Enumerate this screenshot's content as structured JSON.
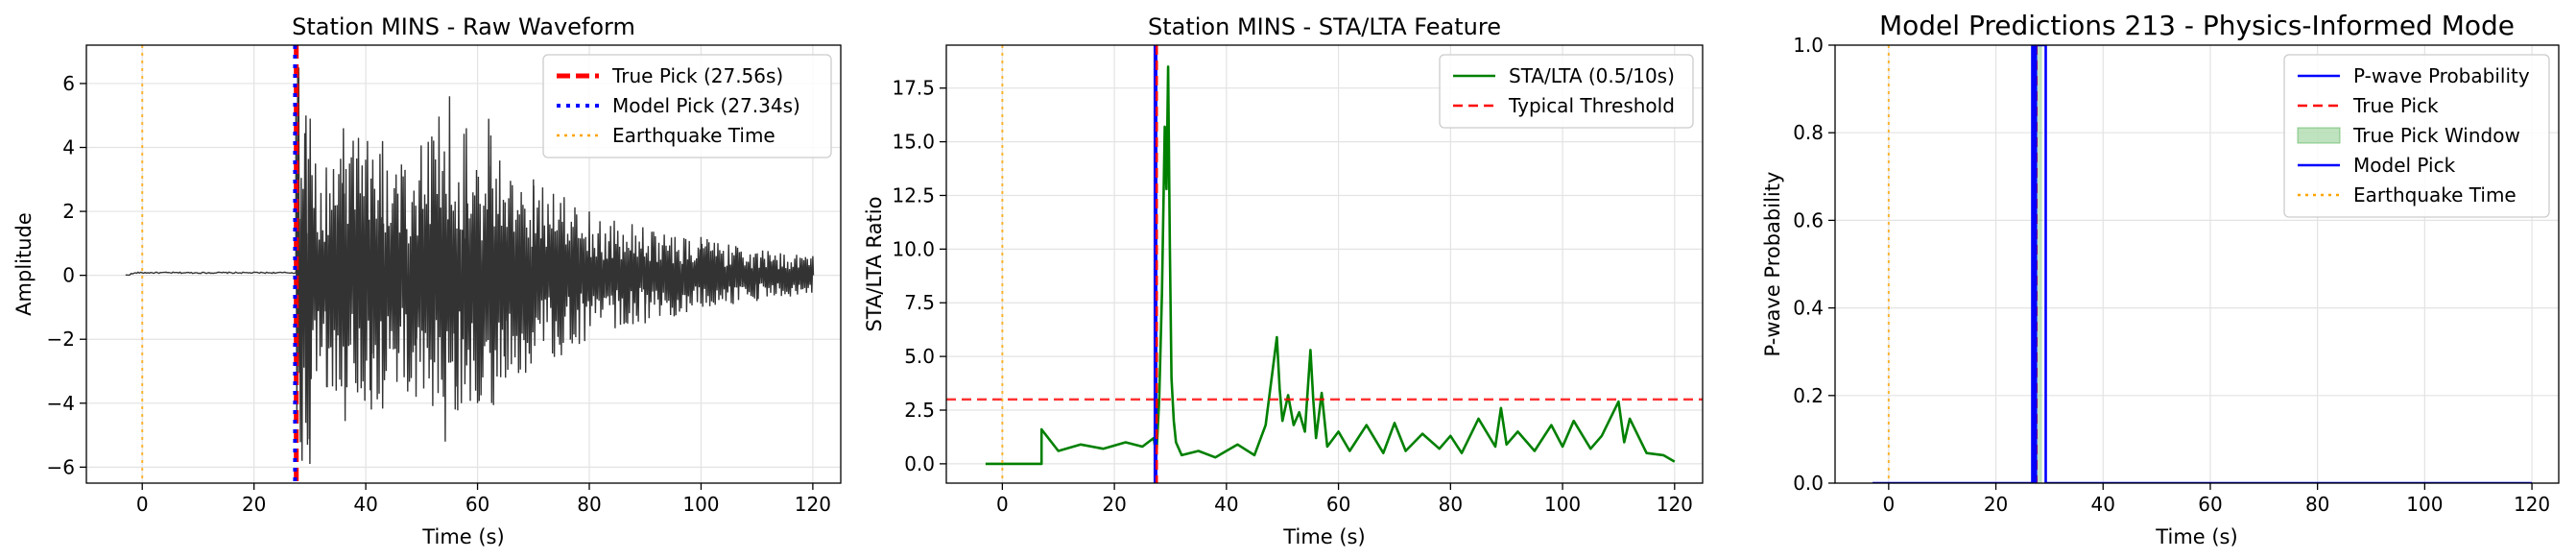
{
  "chart_data": [
    {
      "type": "line",
      "title": "Station MINS - Raw Waveform",
      "xlabel": "Time (s)",
      "ylabel": "Amplitude",
      "xlim": [
        -10,
        125
      ],
      "ylim": [
        -6.5,
        7.2
      ],
      "xticks": [
        0,
        20,
        40,
        60,
        80,
        100,
        120
      ],
      "yticks": [
        -6,
        -4,
        -2,
        0,
        2,
        4,
        6
      ],
      "grid": true,
      "legend_position": "top-right",
      "waveform": {
        "color": "#333333",
        "quiet_start": -3,
        "quiet_end": 27.5,
        "quiet_level": 0.08,
        "end": 120,
        "burst_peaks": [
          [
            28.0,
            6.5
          ],
          [
            28.6,
            -5.8
          ],
          [
            29.3,
            5.0
          ],
          [
            30.0,
            -5.9
          ],
          [
            31.0,
            3.5
          ],
          [
            33.0,
            -3.5
          ],
          [
            36.0,
            4.6
          ],
          [
            41.0,
            -4.2
          ],
          [
            43.0,
            4.2
          ],
          [
            49.0,
            -3.8
          ],
          [
            55.0,
            5.6
          ],
          [
            56.0,
            -4.2
          ],
          [
            58.0,
            4.6
          ],
          [
            60.0,
            -4.0
          ],
          [
            62.0,
            4.9
          ],
          [
            65.0,
            -3.2
          ],
          [
            70.0,
            3.0
          ],
          [
            75.0,
            -2.5
          ],
          [
            80.0,
            2.0
          ],
          [
            90.0,
            -1.5
          ],
          [
            100.0,
            1.2
          ],
          [
            110.0,
            -0.8
          ],
          [
            120.0,
            0.6
          ]
        ]
      },
      "vlines": [
        {
          "name": "True Pick",
          "x": 27.56,
          "color": "#ff0000",
          "style": "dashed-thick"
        },
        {
          "name": "Model Pick",
          "x": 27.34,
          "color": "#0000ff",
          "style": "dotted-thick"
        },
        {
          "name": "Earthquake Time",
          "x": 0,
          "color": "#ffa500",
          "style": "dotted"
        }
      ],
      "legend": [
        {
          "label": "True Pick (27.56s)",
          "color": "#ff0000",
          "style": "dashed-thick"
        },
        {
          "label": "Model Pick (27.34s)",
          "color": "#0000ff",
          "style": "dotted-thick"
        },
        {
          "label": "Earthquake Time",
          "color": "#ffa500",
          "style": "dotted"
        }
      ]
    },
    {
      "type": "line",
      "title": "Station MINS - STA/LTA Feature",
      "xlabel": "Time (s)",
      "ylabel": "STA/LTA Ratio",
      "xlim": [
        -10,
        125
      ],
      "ylim": [
        -0.9,
        19.5
      ],
      "xticks": [
        0,
        20,
        40,
        60,
        80,
        100,
        120
      ],
      "yticks": [
        0.0,
        2.5,
        5.0,
        7.5,
        10.0,
        12.5,
        15.0,
        17.5
      ],
      "ytick_labels": [
        "0.0",
        "2.5",
        "5.0",
        "7.5",
        "10.0",
        "12.5",
        "15.0",
        "17.5"
      ],
      "grid": true,
      "legend_position": "top-right",
      "series": [
        {
          "name": "STA/LTA (0.5/10s)",
          "color": "#008000",
          "x": [
            -3,
            7,
            7,
            10,
            14,
            18,
            22,
            25,
            27,
            27.5,
            28,
            28.5,
            29,
            29.3,
            29.6,
            29.9,
            30.2,
            30.6,
            31,
            32,
            35,
            38,
            42,
            45,
            47,
            49,
            49.5,
            50,
            51,
            52,
            53,
            54,
            55,
            55.5,
            56,
            57,
            58,
            60,
            62,
            65,
            68,
            70,
            72,
            75,
            78,
            80,
            82,
            85,
            88,
            89,
            90,
            92,
            95,
            98,
            100,
            102,
            105,
            107,
            110,
            111,
            112,
            115,
            118,
            120
          ],
          "y": [
            0,
            0,
            1.6,
            0.6,
            0.9,
            0.7,
            1.0,
            0.8,
            1.2,
            0.4,
            3.0,
            8.0,
            15.7,
            12.8,
            18.5,
            10.1,
            4.0,
            2.0,
            1.0,
            0.4,
            0.6,
            0.3,
            0.9,
            0.4,
            1.8,
            5.9,
            3.5,
            2.0,
            3.2,
            1.8,
            2.4,
            1.5,
            5.3,
            3.0,
            1.2,
            3.3,
            0.8,
            1.5,
            0.6,
            1.8,
            0.5,
            1.9,
            0.6,
            1.4,
            0.7,
            1.3,
            0.5,
            2.1,
            0.8,
            2.6,
            0.9,
            1.5,
            0.6,
            1.8,
            0.8,
            2.0,
            0.7,
            1.3,
            2.9,
            1.0,
            2.1,
            0.5,
            0.4,
            0.1
          ]
        }
      ],
      "hlines": [
        {
          "name": "Typical Threshold",
          "y": 3.0,
          "color": "#ff0000",
          "style": "dashed"
        }
      ],
      "vlines": [
        {
          "name": "model-pick",
          "x": 27.34,
          "color": "#0000ff",
          "style": "solid-thick"
        },
        {
          "name": "true-pick",
          "x": 27.56,
          "color": "#ff0000",
          "style": "dashed"
        },
        {
          "name": "earthquake-time",
          "x": 0,
          "color": "#ffa500",
          "style": "dotted"
        }
      ],
      "legend": [
        {
          "label": "STA/LTA (0.5/10s)",
          "color": "#008000",
          "style": "solid"
        },
        {
          "label": "Typical Threshold",
          "color": "#ff0000",
          "style": "dashed"
        }
      ]
    },
    {
      "type": "line",
      "title": "Model Predictions 213 - Physics-Informed Mode",
      "xlabel": "Time (s)",
      "ylabel": "P-wave Probability",
      "xlim": [
        -10,
        125
      ],
      "ylim": [
        0,
        1
      ],
      "xticks": [
        0,
        20,
        40,
        60,
        80,
        100,
        120
      ],
      "yticks": [
        0.0,
        0.2,
        0.4,
        0.6,
        0.8,
        1.0
      ],
      "ytick_labels": [
        "0.0",
        "0.2",
        "0.4",
        "0.6",
        "0.8",
        "1.0"
      ],
      "grid": true,
      "legend_position": "top-right",
      "series": [
        {
          "name": "P-wave Probability",
          "color": "#0000ff",
          "x": [
            -3,
            26.8,
            26.8,
            29.3,
            29.3,
            120
          ],
          "y": [
            0,
            0,
            1,
            1,
            0,
            0
          ]
        }
      ],
      "bands": [
        {
          "name": "True Pick Window",
          "x0": 26.6,
          "x1": 28.6,
          "color": "#2ca02c",
          "opacity": 0.3
        }
      ],
      "vlines": [
        {
          "name": "true-pick",
          "x": 27.56,
          "color": "#ff0000",
          "style": "dashed"
        },
        {
          "name": "model-pick",
          "x": 27.34,
          "color": "#0000ff",
          "style": "solid-thick"
        },
        {
          "name": "earthquake-time",
          "x": 0,
          "color": "#ffa500",
          "style": "dotted"
        }
      ],
      "legend": [
        {
          "label": "P-wave Probability",
          "color": "#0000ff",
          "style": "solid"
        },
        {
          "label": "True Pick",
          "color": "#ff0000",
          "style": "dashed"
        },
        {
          "label": "True Pick Window",
          "color": "#2ca02c",
          "style": "patch"
        },
        {
          "label": "Model Pick",
          "color": "#0000ff",
          "style": "solid"
        },
        {
          "label": "Earthquake Time",
          "color": "#ffa500",
          "style": "dotted"
        }
      ]
    }
  ]
}
